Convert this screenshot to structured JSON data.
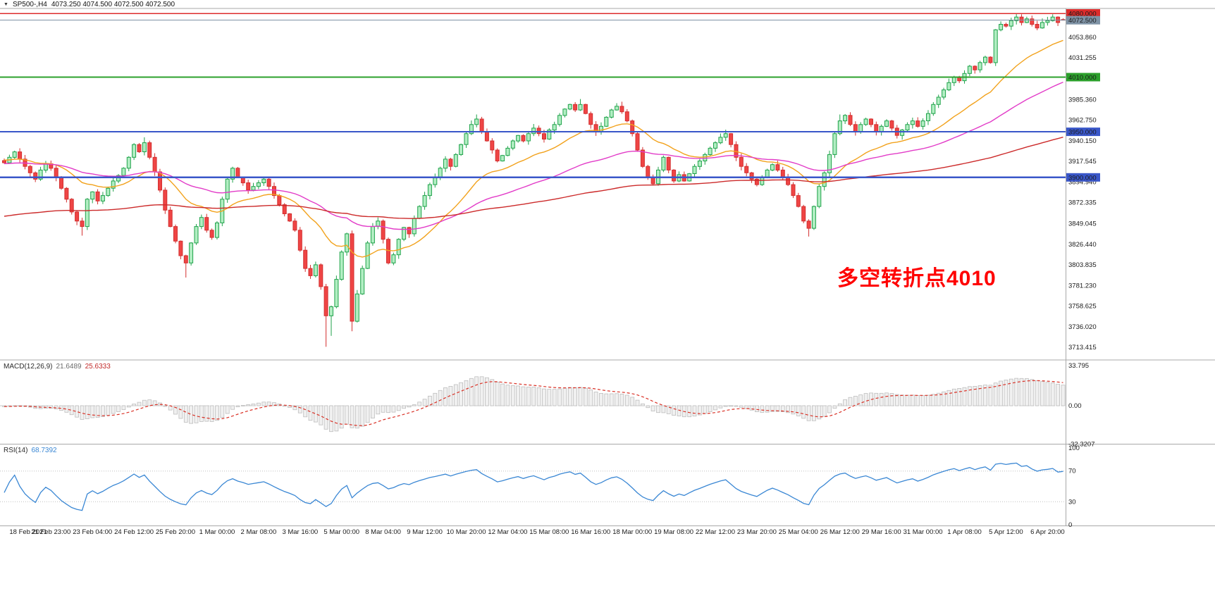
{
  "header": {
    "symbol_period": "SP500-,H4",
    "quote": "4073.250 4074.500 4072.500 4072.500"
  },
  "annotation": {
    "text": "多空转折点4010",
    "color": "#ff0000"
  },
  "hlines": [
    {
      "price": 4080,
      "color": "#dd2c2c",
      "width": 1.5
    },
    {
      "price": 4010,
      "color": "#2ca02c",
      "width": 2
    },
    {
      "price": 3950,
      "color": "#3a57c9",
      "width": 2
    },
    {
      "price": 3900,
      "color": "#3a57c9",
      "width": 2.5
    }
  ],
  "bid_line": {
    "price": 4072.5,
    "color": "#7f93a6"
  },
  "price_axis": {
    "badges": [
      {
        "label": "4080.000",
        "price": 4080,
        "color": "#dd2c2c"
      },
      {
        "label": "4072.500",
        "price": 4072.5,
        "color": "#7f93a6"
      },
      {
        "label": "4010.000",
        "price": 4010,
        "color": "#2ca02c"
      },
      {
        "label": "3950.000",
        "price": 3950,
        "color": "#3a57c9"
      },
      {
        "label": "3900.000",
        "price": 3900,
        "color": "#3a57c9"
      }
    ],
    "labels": [
      {
        "label": "4053.860",
        "price": 4053.86
      },
      {
        "label": "4031.255",
        "price": 4031.255
      },
      {
        "label": "3985.360",
        "price": 3985.36
      },
      {
        "label": "3962.750",
        "price": 3962.75
      },
      {
        "label": "3940.150",
        "price": 3940.15
      },
      {
        "label": "3917.545",
        "price": 3917.545
      },
      {
        "label": "3894.940",
        "price": 3894.94
      },
      {
        "label": "3872.335",
        "price": 3872.335
      },
      {
        "label": "3849.045",
        "price": 3849.045
      },
      {
        "label": "3826.440",
        "price": 3826.44
      },
      {
        "label": "3803.835",
        "price": 3803.835
      },
      {
        "label": "3781.230",
        "price": 3781.23
      },
      {
        "label": "3758.625",
        "price": 3758.625
      },
      {
        "label": "3736.020",
        "price": 3736.02
      },
      {
        "label": "3713.415",
        "price": 3713.415
      }
    ]
  },
  "time_axis": [
    {
      "bar": 1,
      "label": "18 Feb 2021"
    },
    {
      "bar": 9,
      "label": "21 Feb 23:00"
    },
    {
      "bar": 17,
      "label": "23 Feb 04:00"
    },
    {
      "bar": 25,
      "label": "24 Feb 12:00"
    },
    {
      "bar": 33,
      "label": "25 Feb 20:00"
    },
    {
      "bar": 41,
      "label": "1 Mar 00:00"
    },
    {
      "bar": 49,
      "label": "2 Mar 08:00"
    },
    {
      "bar": 57,
      "label": "3 Mar 16:00"
    },
    {
      "bar": 65,
      "label": "5 Mar 00:00"
    },
    {
      "bar": 73,
      "label": "8 Mar 04:00"
    },
    {
      "bar": 81,
      "label": "9 Mar 12:00"
    },
    {
      "bar": 89,
      "label": "10 Mar 20:00"
    },
    {
      "bar": 97,
      "label": "12 Mar 04:00"
    },
    {
      "bar": 105,
      "label": "15 Mar 08:00"
    },
    {
      "bar": 113,
      "label": "16 Mar 16:00"
    },
    {
      "bar": 121,
      "label": "18 Mar 00:00"
    },
    {
      "bar": 129,
      "label": "19 Mar 08:00"
    },
    {
      "bar": 137,
      "label": "22 Mar 12:00"
    },
    {
      "bar": 145,
      "label": "23 Mar 20:00"
    },
    {
      "bar": 153,
      "label": "25 Mar 04:00"
    },
    {
      "bar": 161,
      "label": "26 Mar 12:00"
    },
    {
      "bar": 169,
      "label": "29 Mar 16:00"
    },
    {
      "bar": 177,
      "label": "31 Mar 00:00"
    },
    {
      "bar": 185,
      "label": "1 Apr 08:00"
    },
    {
      "bar": 193,
      "label": "5 Apr 12:00"
    },
    {
      "bar": 201,
      "label": "6 Apr 20:00"
    }
  ],
  "macd_panel": {
    "name": "MACD(12,26,9)",
    "main_value": "21.6489",
    "signal_value": "25.6333",
    "axis_labels": [
      {
        "v": 33.795,
        "label": "33.795"
      },
      {
        "v": 0,
        "label": "0.00"
      },
      {
        "v": -32.3207,
        "label": "-32.3207"
      }
    ],
    "histogram_fill": "#f0f0f0",
    "histogram_stroke": "#bdbdbd",
    "signal_color": "#d93025",
    "params": {
      "fast": 12,
      "slow": 26,
      "signal": 9
    }
  },
  "rsi_panel": {
    "name": "RSI(14)",
    "value": "68.7392",
    "period": 14,
    "axis_labels": [
      {
        "v": 100,
        "label": "100"
      },
      {
        "v": 70,
        "label": "70"
      },
      {
        "v": 30,
        "label": "30"
      },
      {
        "v": 0,
        "label": "0"
      }
    ],
    "levels": [
      70,
      30
    ],
    "line_color": "#3a87d4"
  },
  "chart_data": {
    "type": "candlestick",
    "symbol": "SP500-",
    "timeframe": "H4",
    "bars": 205,
    "current": {
      "open": 4073.25,
      "high": 4074.5,
      "low": 4072.5,
      "close": 4072.5
    },
    "y_axis_range": [
      3713.415,
      4080.0
    ],
    "candle_up": {
      "stroke": "#1fa24a",
      "fill": "#b2eec3"
    },
    "candle_down": {
      "stroke": "#d32f2f",
      "fill": "#ef4545"
    },
    "moving_averages": [
      {
        "type": "ema",
        "period": 21,
        "color": "#f2a21c"
      },
      {
        "type": "ema",
        "period": 55,
        "color": "#e23cc8"
      },
      {
        "type": "ema",
        "period": 170,
        "color": "#cc2a2a"
      }
    ],
    "prehistory_anchors": [
      [
        -220,
        3640
      ],
      [
        -150,
        3745
      ],
      [
        -100,
        3855
      ],
      [
        -60,
        3918
      ],
      [
        -35,
        3926
      ],
      [
        -15,
        3920
      ],
      [
        -1,
        3916
      ]
    ],
    "wick_overrides": {
      "15": {
        "low": 3836
      },
      "27": {
        "high": 3944
      },
      "35": {
        "low": 3790
      },
      "62": {
        "low": 3714
      },
      "63": {
        "low": 3726
      },
      "67": {
        "low": 3731
      },
      "91": {
        "high": 3969
      },
      "111": {
        "high": 3986
      },
      "119": {
        "high": 3983
      },
      "155": {
        "low": 3835
      },
      "161": {
        "high": 3969
      },
      "196": {
        "high": 4079
      },
      "202": {
        "high": 4079
      }
    },
    "closes": [
      3916,
      3922,
      3928,
      3920,
      3912,
      3905,
      3898,
      3908,
      3915,
      3910,
      3900,
      3888,
      3876,
      3862,
      3852,
      3846,
      3876,
      3884,
      3874,
      3880,
      3888,
      3896,
      3902,
      3910,
      3922,
      3936,
      3928,
      3938,
      3922,
      3906,
      3886,
      3864,
      3846,
      3830,
      3814,
      3806,
      3828,
      3846,
      3856,
      3842,
      3834,
      3850,
      3876,
      3898,
      3910,
      3900,
      3894,
      3886,
      3890,
      3894,
      3898,
      3890,
      3880,
      3870,
      3860,
      3852,
      3842,
      3820,
      3800,
      3792,
      3804,
      3780,
      3748,
      3758,
      3788,
      3818,
      3838,
      3742,
      3772,
      3800,
      3828,
      3846,
      3852,
      3832,
      3806,
      3815,
      3832,
      3845,
      3838,
      3855,
      3868,
      3880,
      3892,
      3900,
      3910,
      3920,
      3912,
      3925,
      3936,
      3948,
      3958,
      3964,
      3950,
      3940,
      3930,
      3918,
      3924,
      3932,
      3940,
      3946,
      3940,
      3948,
      3954,
      3948,
      3942,
      3952,
      3958,
      3968,
      3975,
      3980,
      3974,
      3980,
      3970,
      3958,
      3950,
      3956,
      3966,
      3974,
      3978,
      3972,
      3962,
      3948,
      3930,
      3912,
      3900,
      3893,
      3908,
      3922,
      3908,
      3896,
      3903,
      3896,
      3904,
      3912,
      3918,
      3925,
      3932,
      3938,
      3944,
      3948,
      3936,
      3922,
      3912,
      3905,
      3898,
      3892,
      3900,
      3908,
      3914,
      3908,
      3900,
      3892,
      3880,
      3868,
      3852,
      3844,
      3868,
      3890,
      3905,
      3925,
      3948,
      3962,
      3968,
      3958,
      3950,
      3958,
      3964,
      3958,
      3950,
      3956,
      3962,
      3954,
      3946,
      3952,
      3958,
      3962,
      3956,
      3962,
      3970,
      3980,
      3988,
      3996,
      4004,
      4010,
      4006,
      4014,
      4022,
      4018,
      4026,
      4032,
      4026,
      4062,
      4068,
      4066,
      4072,
      4076,
      4070,
      4074,
      4068,
      4064,
      4070,
      4072,
      4076,
      4070,
      4072.5
    ]
  }
}
